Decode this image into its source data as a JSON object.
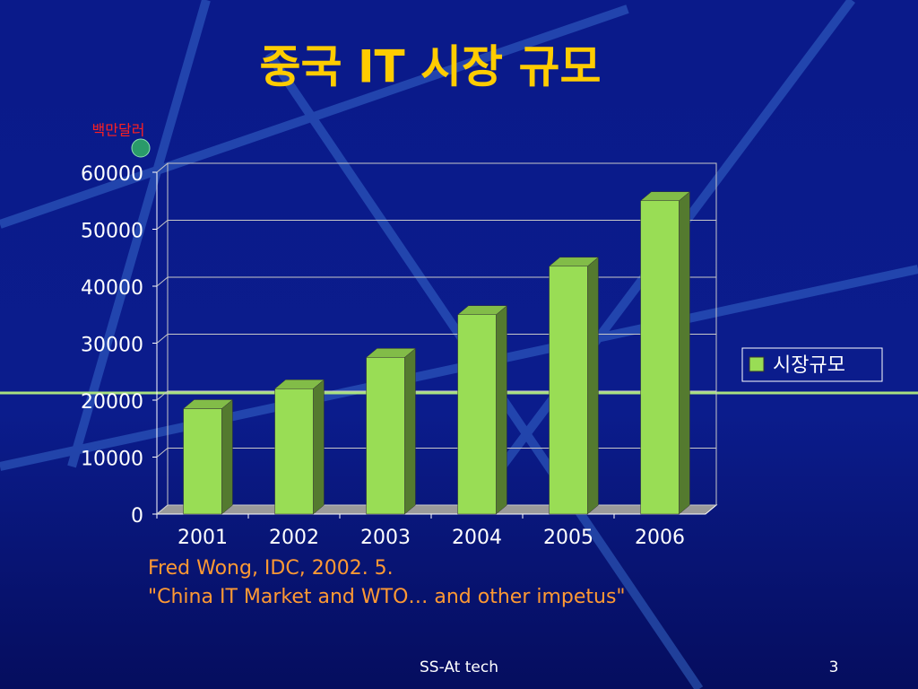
{
  "chart_data": {
    "type": "bar",
    "title": "중국 IT 시장 규모",
    "y_label": "백만달러",
    "categories": [
      "2001",
      "2002",
      "2003",
      "2004",
      "2005",
      "2006"
    ],
    "series": [
      {
        "name": "시장규모",
        "color": "#99dd55",
        "values": [
          18500,
          22000,
          27500,
          35000,
          43500,
          55000
        ]
      }
    ],
    "ylim": [
      0,
      60000
    ],
    "yticks": [
      0,
      10000,
      20000,
      30000,
      40000,
      50000,
      60000
    ],
    "grid": true,
    "legend": "right"
  },
  "source": [
    "Fred Wong, IDC, 2002. 5.",
    "\"China IT Market and WTO… and other impetus\""
  ],
  "footer": {
    "text": "SS-At tech",
    "page": "3"
  }
}
